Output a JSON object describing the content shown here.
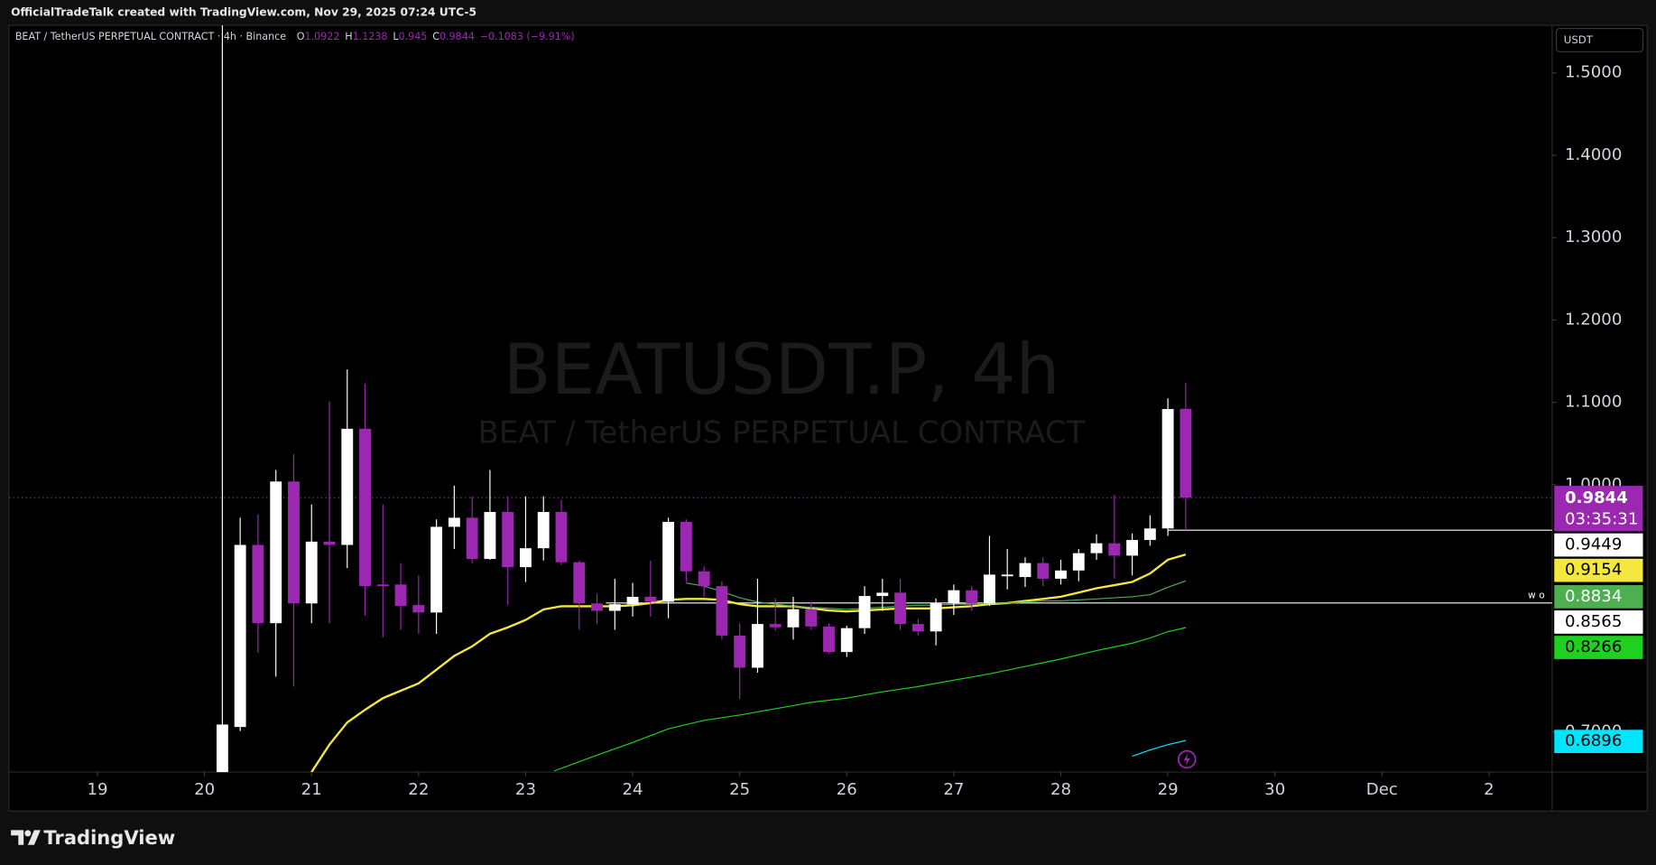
{
  "chart_data": {
    "type": "candlestick",
    "header": "OfficialTradeTalk created with TradingView.com, Nov 29, 2025 07:24 UTC-5",
    "legend": {
      "symbol": "BEAT / TetherUS PERPETUAL CONTRACT · 4h · Binance",
      "prefixes": [
        "O",
        "H",
        "L",
        "C"
      ],
      "change": "−0.1083 (−9.91%)"
    },
    "watermark": {
      "title": "BEATUSDT.P, 4h",
      "subtitle": "BEAT / TetherUS PERPETUAL CONTRACT"
    },
    "currency": "USDT",
    "countdown": "03:35:31",
    "brand": "TradingView",
    "xlim": [
      18.172,
      32.59
    ],
    "xticks": [
      19,
      20,
      21,
      22,
      23,
      24,
      25,
      26,
      27,
      28,
      29,
      30,
      {
        "value": 31,
        "label": "Dec"
      },
      {
        "value": 32,
        "label": "2"
      }
    ],
    "ylim": [
      0.6513,
      1.5577
    ],
    "yticks": [
      {
        "value": 0.7,
        "label": "0.7000"
      },
      {
        "value": 1.0,
        "label": "1.0000"
      },
      {
        "value": 1.1,
        "label": "1.1000"
      },
      {
        "value": 1.2,
        "label": "1.2000"
      },
      {
        "value": 1.3,
        "label": "1.3000"
      },
      {
        "value": 1.4,
        "label": "1.4000"
      },
      {
        "value": 1.5,
        "label": "1.5000"
      }
    ],
    "grid": false,
    "up_color": "#ffffff",
    "down_color": "#9c27b0",
    "candles": {
      "x": [
        20.1667,
        20.3333,
        20.5,
        20.6667,
        20.8333,
        21,
        21.1667,
        21.3333,
        21.5,
        21.6667,
        21.8333,
        22,
        22.1667,
        22.3333,
        22.5,
        22.6667,
        22.8333,
        23,
        23.1667,
        23.3333,
        23.5,
        23.6667,
        23.8333,
        24,
        24.1667,
        24.3333,
        24.5,
        24.6667,
        24.8333,
        25,
        25.1667,
        25.3333,
        25.5,
        25.6667,
        25.8333,
        26,
        26.1667,
        26.3333,
        26.5,
        26.6667,
        26.8333,
        27,
        27.1667,
        27.3333,
        27.5,
        27.6667,
        27.8333,
        28,
        28.1667,
        28.3333,
        28.5,
        28.6667,
        28.8333,
        29,
        29.1667
      ],
      "open": [
        0.62,
        0.706,
        0.927,
        0.832,
        1.004,
        0.856,
        0.931,
        0.927,
        1.068,
        0.879,
        0.879,
        0.854,
        0.845,
        0.949,
        0.96,
        0.91,
        0.967,
        0.9,
        0.923,
        0.967,
        0.906,
        0.856,
        0.847,
        0.855,
        0.864,
        0.858,
        0.955,
        0.895,
        0.877,
        0.817,
        0.778,
        0.831,
        0.827,
        0.849,
        0.828,
        0.797,
        0.826,
        0.865,
        0.869,
        0.831,
        0.822,
        0.856,
        0.872,
        0.856,
        0.889,
        0.888,
        0.905,
        0.886,
        0.896,
        0.917,
        0.929,
        0.914,
        0.933,
        0.947,
        1.0922
      ],
      "high": [
        1.9,
        0.96,
        0.964,
        1.018,
        1.037,
        0.976,
        1.101,
        1.14,
        1.123,
        0.976,
        0.905,
        0.89,
        0.958,
        0.999,
        0.986,
        1.018,
        0.986,
        0.986,
        0.986,
        0.982,
        0.908,
        0.868,
        0.886,
        0.881,
        0.908,
        0.96,
        0.958,
        0.901,
        0.883,
        0.832,
        0.886,
        0.862,
        0.864,
        0.858,
        0.832,
        0.829,
        0.877,
        0.886,
        0.886,
        0.837,
        0.862,
        0.879,
        0.877,
        0.938,
        0.922,
        0.912,
        0.912,
        0.909,
        0.922,
        0.94,
        0.988,
        0.941,
        0.963,
        1.105,
        1.1238
      ],
      "low": [
        0.6,
        0.701,
        0.796,
        0.767,
        0.755,
        0.832,
        0.832,
        0.899,
        0.841,
        0.815,
        0.824,
        0.819,
        0.819,
        0.922,
        0.905,
        0.909,
        0.854,
        0.882,
        0.908,
        0.903,
        0.824,
        0.831,
        0.824,
        0.84,
        0.84,
        0.838,
        0.882,
        0.864,
        0.812,
        0.74,
        0.772,
        0.823,
        0.812,
        0.824,
        0.795,
        0.791,
        0.819,
        0.847,
        0.824,
        0.817,
        0.805,
        0.842,
        0.847,
        0.853,
        0.873,
        0.876,
        0.877,
        0.879,
        0.883,
        0.909,
        0.886,
        0.89,
        0.926,
        0.938,
        0.945
      ],
      "close": [
        0.709,
        0.927,
        0.832,
        1.004,
        0.856,
        0.931,
        0.927,
        1.068,
        0.877,
        0.877,
        0.853,
        0.845,
        0.949,
        0.96,
        0.91,
        0.967,
        0.9,
        0.923,
        0.967,
        0.906,
        0.856,
        0.847,
        0.855,
        0.864,
        0.858,
        0.955,
        0.895,
        0.877,
        0.817,
        0.778,
        0.831,
        0.827,
        0.849,
        0.828,
        0.797,
        0.826,
        0.865,
        0.869,
        0.831,
        0.822,
        0.856,
        0.872,
        0.856,
        0.891,
        0.891,
        0.905,
        0.886,
        0.896,
        0.917,
        0.929,
        0.914,
        0.933,
        0.947,
        1.092,
        0.9844
      ]
    },
    "lines": [
      {
        "color": "#f5e83c",
        "width": 2,
        "x": [
          21,
          21.1667,
          21.3333,
          21.5,
          21.6667,
          21.8333,
          22,
          22.1667,
          22.3333,
          22.5,
          22.6667,
          22.8333,
          23,
          23.1667,
          23.3333,
          23.5,
          23.6667,
          23.8333,
          24,
          24.1667,
          24.3333,
          24.5,
          24.6667,
          24.8333,
          25,
          25.1667,
          25.3333,
          25.5,
          25.6667,
          25.8333,
          26,
          26.1667,
          26.3333,
          26.5,
          26.6667,
          26.8333,
          27,
          27.1667,
          27.3333,
          27.5,
          27.6667,
          27.8333,
          28,
          28.1667,
          28.3333,
          28.5,
          28.6667,
          28.8333,
          29,
          29.1667
        ],
        "values": [
          0.6513,
          0.6846,
          0.7115,
          0.7269,
          0.741,
          0.75,
          0.759,
          0.7756,
          0.7923,
          0.8038,
          0.8192,
          0.8269,
          0.8359,
          0.8487,
          0.8526,
          0.8526,
          0.8526,
          0.8526,
          0.8538,
          0.8564,
          0.8603,
          0.8615,
          0.8615,
          0.8603,
          0.8551,
          0.8526,
          0.8526,
          0.8526,
          0.85,
          0.8474,
          0.8462,
          0.8474,
          0.8487,
          0.85,
          0.85,
          0.85,
          0.8513,
          0.8526,
          0.8551,
          0.8564,
          0.859,
          0.8615,
          0.8641,
          0.8692,
          0.8744,
          0.8782,
          0.8821,
          0.8923,
          0.909,
          0.9154
        ]
      },
      {
        "color": "#4caf50",
        "width": 1,
        "x": [
          24.5,
          24.6667,
          24.8333,
          25,
          25.1667,
          25.3333,
          25.5,
          25.6667,
          25.8333,
          26,
          26.1667,
          26.3333,
          26.5,
          26.6667,
          26.8333,
          27,
          27.1667,
          27.3333,
          27.5,
          27.6667,
          27.8333,
          28,
          28.1667,
          28.3333,
          28.5,
          28.6667,
          28.8333,
          29,
          29.1667
        ],
        "values": [
          0.8808,
          0.8769,
          0.8705,
          0.8628,
          0.8577,
          0.8551,
          0.8526,
          0.8513,
          0.85,
          0.8487,
          0.85,
          0.8513,
          0.8526,
          0.8538,
          0.8538,
          0.8551,
          0.8551,
          0.8564,
          0.8564,
          0.8577,
          0.859,
          0.859,
          0.8603,
          0.8615,
          0.8628,
          0.8641,
          0.8667,
          0.8756,
          0.8834
        ]
      },
      {
        "color": "#1fd11f",
        "width": 1,
        "x": [
          23.2667,
          23.6667,
          24,
          24.3333,
          24.6667,
          25,
          25.3333,
          25.6667,
          26,
          26.3333,
          26.6667,
          27,
          27.3333,
          27.6667,
          28,
          28.3333,
          28.6667,
          28.8333,
          29,
          29.1667
        ],
        "values": [
          0.6526,
          0.6718,
          0.6872,
          0.7038,
          0.7141,
          0.7205,
          0.7282,
          0.7359,
          0.741,
          0.7487,
          0.7551,
          0.7628,
          0.7705,
          0.7795,
          0.7885,
          0.7987,
          0.8077,
          0.8141,
          0.8218,
          0.8266
        ]
      },
      {
        "color": "#00e5ff",
        "width": 1,
        "x": [
          28.6667,
          28.8333,
          29,
          29.1667
        ],
        "values": [
          0.6705,
          0.6782,
          0.6846,
          0.6896
        ]
      }
    ],
    "horizontal_lines": [
      {
        "price": 0.9449,
        "from": 29,
        "color": "#ffffff"
      },
      {
        "price": 0.8565,
        "from": 23.75,
        "color": "#ffffff",
        "text": "wo"
      }
    ]
  }
}
